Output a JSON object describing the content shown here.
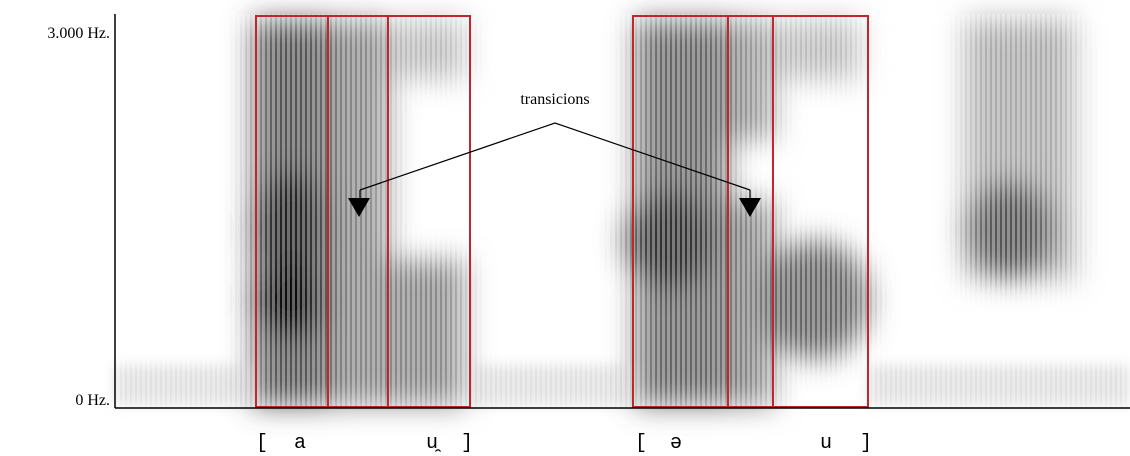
{
  "axis": {
    "top_label": "3.000 Hz.",
    "bottom_label": "0 Hz."
  },
  "annotation": "transicions",
  "transcription": [
    "[",
    "a",
    "u̯",
    "]",
    "[",
    "ə",
    "u",
    "]"
  ]
}
